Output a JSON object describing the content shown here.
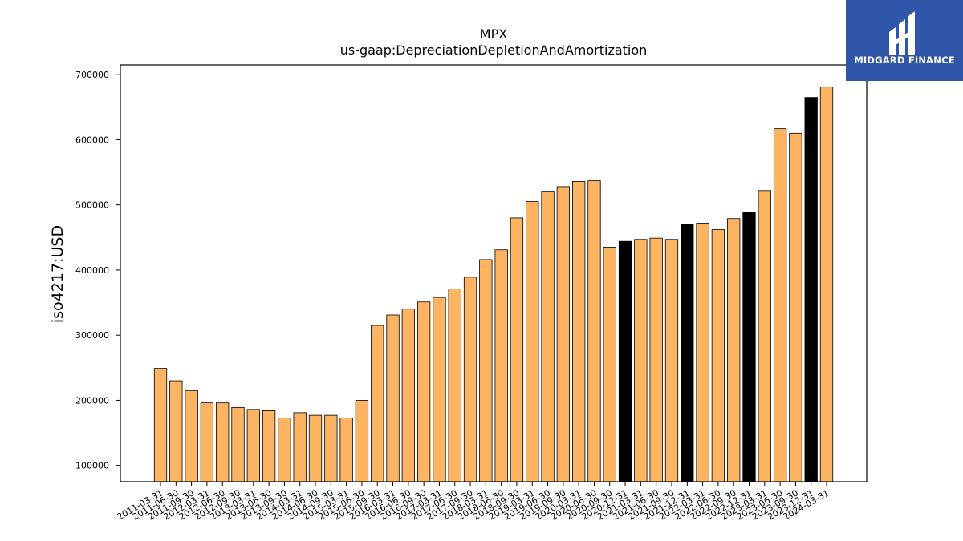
{
  "chart_data": {
    "type": "bar",
    "title": "MPX",
    "subtitle": "us-gaap:DepreciationDepletionAndAmortization",
    "ylabel": "iso4217:USD",
    "xlabel": "",
    "ylim": [
      75000,
      715000
    ],
    "yticks": [
      100000,
      200000,
      300000,
      400000,
      500000,
      600000,
      700000
    ],
    "grid": false,
    "colors": {
      "default": "#fdb462",
      "highlight": "#000000",
      "edge": "#000000"
    },
    "categories": [
      "2011-03-31",
      "2011-06-30",
      "2011-09-30",
      "2012-03-31",
      "2012-06-30",
      "2012-09-30",
      "2013-03-31",
      "2013-06-30",
      "2013-09-30",
      "2014-03-31",
      "2014-06-30",
      "2014-09-30",
      "2015-03-31",
      "2015-06-30",
      "2015-09-30",
      "2016-03-31",
      "2016-06-30",
      "2016-09-30",
      "2017-03-31",
      "2017-06-30",
      "2017-09-30",
      "2018-03-31",
      "2018-06-30",
      "2018-09-30",
      "2019-03-31",
      "2019-06-30",
      "2019-09-30",
      "2020-03-31",
      "2020-06-30",
      "2020-09-30",
      "2020-12-31",
      "2021-03-31",
      "2021-06-30",
      "2021-09-30",
      "2021-12-31",
      "2022-03-31",
      "2022-06-30",
      "2022-09-30",
      "2022-12-31",
      "2023-03-31",
      "2023-06-30",
      "2023-09-30",
      "2023-12-31",
      "2024-03-31"
    ],
    "values": [
      249000,
      230000,
      215000,
      196000,
      196000,
      189000,
      186000,
      184000,
      173000,
      181000,
      177000,
      177000,
      173000,
      200000,
      315000,
      331000,
      340000,
      351000,
      358000,
      371000,
      389000,
      416000,
      431000,
      480000,
      505000,
      521000,
      528000,
      536000,
      537000,
      435000,
      444000,
      447000,
      449000,
      447000,
      470000,
      472000,
      462000,
      479000,
      488000,
      522000,
      617000,
      610000,
      665000,
      681000
    ],
    "highlight": [
      false,
      false,
      false,
      false,
      false,
      false,
      false,
      false,
      false,
      false,
      false,
      false,
      false,
      false,
      false,
      false,
      false,
      false,
      false,
      false,
      false,
      false,
      false,
      false,
      false,
      false,
      false,
      false,
      false,
      false,
      true,
      false,
      false,
      false,
      true,
      false,
      false,
      false,
      true,
      false,
      false,
      false,
      true,
      false
    ]
  },
  "logo": {
    "text": "MIDGARD FINANCE"
  }
}
